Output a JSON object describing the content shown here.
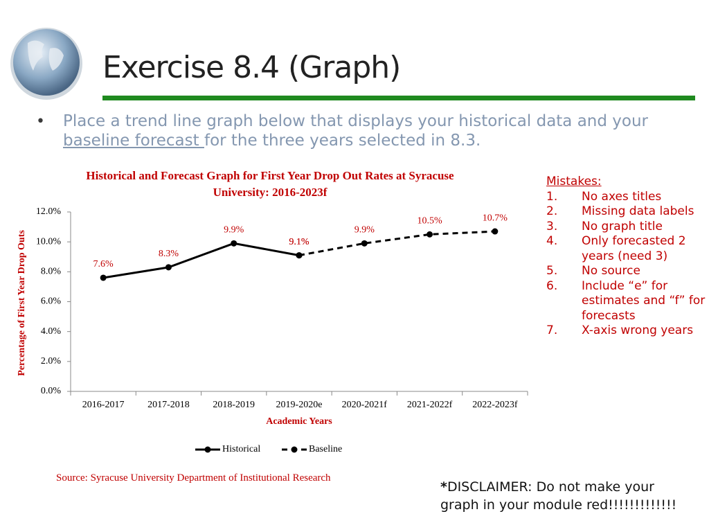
{
  "header": {
    "title": "Exercise 8.4 (Graph)"
  },
  "bullet": {
    "before": "Place a trend line graph below that displays your historical data and your",
    "underlined": "baseline forecast ",
    "after": "for the three years selected in 8.3."
  },
  "mistakes": {
    "title": "Mistakes:",
    "items": [
      {
        "number": "1.",
        "text": "No axes titles"
      },
      {
        "number": "2.",
        "text": "Missing data labels"
      },
      {
        "number": "3.",
        "text": "No graph title"
      },
      {
        "number": "4.",
        "text": "Only forecasted 2 years (need 3)"
      },
      {
        "number": "5.",
        "text": "No source"
      },
      {
        "number": "6.",
        "text": "Include “e” for estimates and “f” for forecasts"
      },
      {
        "number": "7.",
        "text": "X-axis wrong years"
      }
    ]
  },
  "disclaimer": {
    "mark": "*",
    "text": "DISCLAIMER: Do not make your graph in your module red!!!!!!!!!!!!!"
  },
  "chart_data": {
    "type": "line",
    "title": "Historical and Forecast Graph for First Year Drop Out Rates at Syracuse University: 2016-2023f",
    "x_label": "Academic Years",
    "y_label": "Percentage of First Year Drop Outs",
    "source": "Source: Syracuse University Department of Institutional Research",
    "categories": [
      "2016-2017",
      "2017-2018",
      "2018-2019",
      "2019-2020e",
      "2020-2021f",
      "2021-2022f",
      "2022-2023f"
    ],
    "series": [
      {
        "name": "Historical",
        "color": "#000000",
        "line_style": "solid",
        "values": [
          7.6,
          8.3,
          9.9,
          9.1,
          null,
          null,
          null
        ],
        "value_labels": [
          "7.6%",
          "8.3%",
          "9.9%",
          "9.1%",
          null,
          null,
          null
        ]
      },
      {
        "name": "Baseline",
        "color": "#000000",
        "line_style": "dashed",
        "values": [
          null,
          null,
          null,
          9.1,
          9.9,
          10.5,
          10.7
        ],
        "value_labels": [
          null,
          null,
          null,
          "9.1%",
          "9.9%",
          "10.5%",
          "10.7%"
        ]
      }
    ],
    "ylim": [
      0,
      12
    ],
    "yticks": [
      {
        "value": 0,
        "label": "0.0%"
      },
      {
        "value": 2,
        "label": "2.0%"
      },
      {
        "value": 4,
        "label": "4.0%"
      },
      {
        "value": 6,
        "label": "6.0%"
      },
      {
        "value": 8,
        "label": "8.0%"
      },
      {
        "value": 10,
        "label": "10.0%"
      },
      {
        "value": 12,
        "label": "12.0%"
      }
    ],
    "label_color": "#c00000",
    "grid": false
  }
}
